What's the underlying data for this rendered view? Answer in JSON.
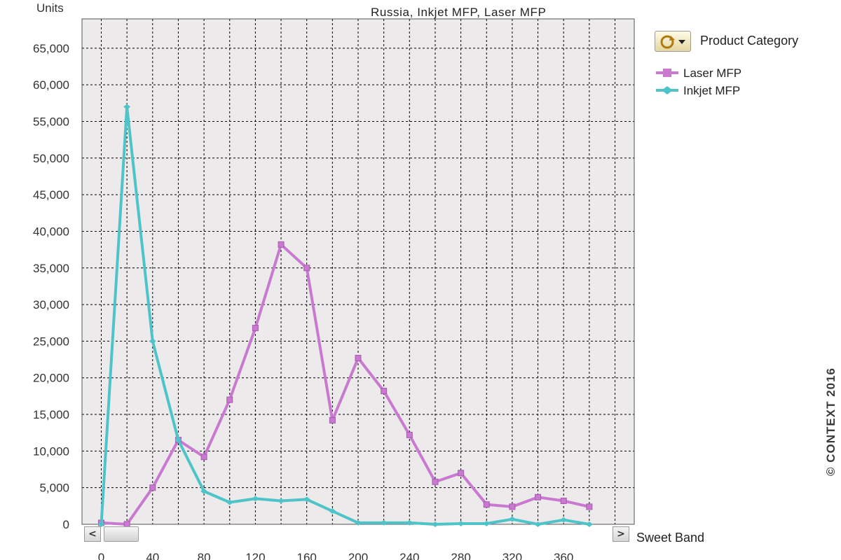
{
  "chart_data": {
    "type": "line",
    "title": "Russia, Inkjet MFP, Laser MFP",
    "ylabel": "Units",
    "xlabel": "Sweet Band",
    "ylim": [
      0,
      69000
    ],
    "xlim": [
      -15,
      415
    ],
    "grid": true,
    "yticks": [
      0,
      5000,
      10000,
      15000,
      20000,
      25000,
      30000,
      35000,
      40000,
      45000,
      50000,
      55000,
      60000,
      65000
    ],
    "ytick_labels": [
      "0",
      "5,000",
      "10,000",
      "15,000",
      "20,000",
      "25,000",
      "30,000",
      "35,000",
      "40,000",
      "45,000",
      "50,000",
      "55,000",
      "60,000",
      "65,000"
    ],
    "xticks": [
      0,
      40,
      80,
      120,
      160,
      200,
      240,
      280,
      320,
      360
    ],
    "xtick_labels": [
      "0",
      "40",
      "80",
      "120",
      "160",
      "200",
      "240",
      "280",
      "320",
      "360"
    ],
    "x": [
      0,
      20,
      40,
      60,
      80,
      100,
      120,
      140,
      160,
      180,
      200,
      220,
      240,
      260,
      280,
      300,
      320,
      340,
      360,
      380
    ],
    "series": [
      {
        "name": "Laser MFP",
        "color": "#c97ad0",
        "values": [
          200,
          0,
          5000,
          11500,
          9200,
          17000,
          26800,
          38200,
          35000,
          14200,
          22700,
          18200,
          12200,
          5800,
          7000,
          2700,
          2400,
          3700,
          3200,
          2400
        ]
      },
      {
        "name": "Inkjet MFP",
        "color": "#4ec4c8",
        "values": [
          0,
          57000,
          25000,
          11500,
          4500,
          3000,
          3500,
          3200,
          3400,
          1800,
          200,
          200,
          200,
          0,
          100,
          100,
          700,
          0,
          600,
          0
        ]
      }
    ],
    "legend": {
      "placement": "top-right",
      "header": "Product Category"
    }
  },
  "controls": {
    "scroll_left": "<",
    "scroll_right": ">",
    "category_icon": "cycle-dropdown-icon"
  },
  "watermark": "© CONTEXT 2016",
  "colors": {
    "plot_background": "#eceaea",
    "grid": "#000000",
    "laser": "#c97ad0",
    "inkjet": "#4ec4c8"
  }
}
